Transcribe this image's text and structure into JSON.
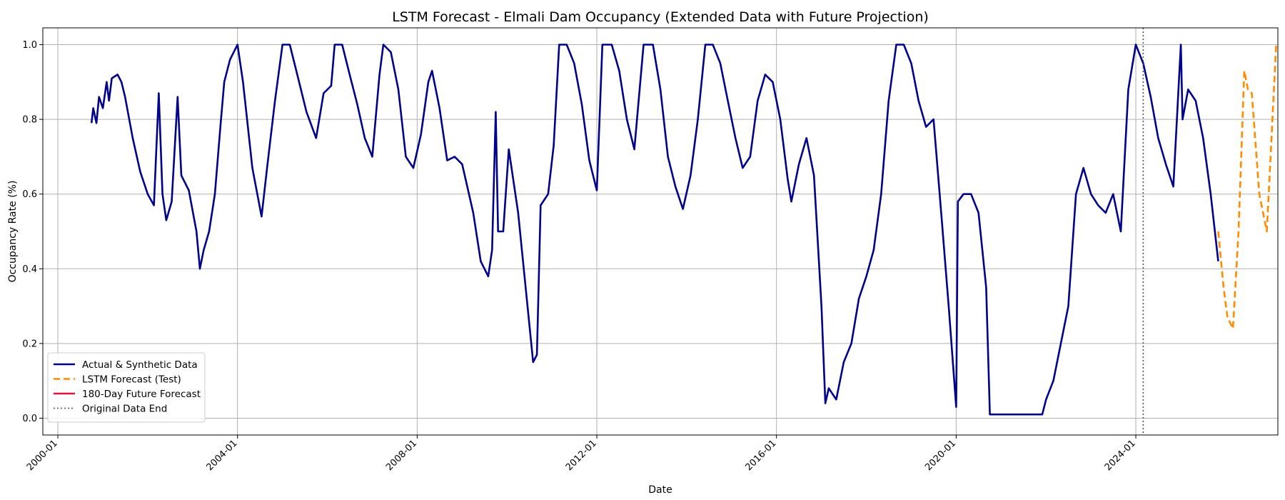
{
  "chart_data": {
    "type": "line",
    "title": "LSTM Forecast - Elmali Dam Occupancy (Extended Data with Future Projection)",
    "xlabel": "Date",
    "ylabel": "Occupancy Rate (%)",
    "x_ticks": [
      "2000-01",
      "2004-01",
      "2008-01",
      "2012-01",
      "2016-01",
      "2020-01",
      "2024-01"
    ],
    "y_ticks": [
      "0.0",
      "0.2",
      "0.4",
      "0.6",
      "0.8",
      "1.0"
    ],
    "xlim": [
      "1999-09",
      "2027-03"
    ],
    "ylim": [
      -0.045,
      1.045
    ],
    "grid": true,
    "legend_position": "lower-left",
    "original_data_end": "2024-03-01",
    "series": [
      {
        "name": "Actual & Synthetic Data",
        "color": "#00008b",
        "style": "solid",
        "points": [
          [
            "2000-10-01",
            0.79
          ],
          [
            "2000-10-15",
            0.83
          ],
          [
            "2000-11-10",
            0.79
          ],
          [
            "2000-12-01",
            0.86
          ],
          [
            "2001-01-01",
            0.83
          ],
          [
            "2001-02-01",
            0.9
          ],
          [
            "2001-02-20",
            0.85
          ],
          [
            "2001-03-15",
            0.91
          ],
          [
            "2001-05-01",
            0.92
          ],
          [
            "2001-06-01",
            0.9
          ],
          [
            "2001-07-01",
            0.86
          ],
          [
            "2001-09-01",
            0.75
          ],
          [
            "2001-11-01",
            0.66
          ],
          [
            "2002-01-01",
            0.6
          ],
          [
            "2002-02-20",
            0.57
          ],
          [
            "2002-04-01",
            0.87
          ],
          [
            "2002-05-01",
            0.6
          ],
          [
            "2002-06-01",
            0.53
          ],
          [
            "2002-07-15",
            0.58
          ],
          [
            "2002-09-01",
            0.86
          ],
          [
            "2002-10-01",
            0.65
          ],
          [
            "2002-12-01",
            0.61
          ],
          [
            "2003-02-01",
            0.5
          ],
          [
            "2003-03-01",
            0.4
          ],
          [
            "2003-04-01",
            0.45
          ],
          [
            "2003-05-15",
            0.5
          ],
          [
            "2003-07-01",
            0.6
          ],
          [
            "2003-08-15",
            0.78
          ],
          [
            "2003-09-15",
            0.9
          ],
          [
            "2003-11-01",
            0.96
          ],
          [
            "2004-01-01",
            1.0
          ],
          [
            "2004-02-15",
            0.9
          ],
          [
            "2004-05-01",
            0.67
          ],
          [
            "2004-07-15",
            0.54
          ],
          [
            "2004-09-01",
            0.68
          ],
          [
            "2004-11-01",
            0.85
          ],
          [
            "2005-01-01",
            1.0
          ],
          [
            "2005-03-01",
            1.0
          ],
          [
            "2005-05-01",
            0.92
          ],
          [
            "2005-07-15",
            0.82
          ],
          [
            "2005-10-01",
            0.75
          ],
          [
            "2005-12-01",
            0.87
          ],
          [
            "2006-02-01",
            0.89
          ],
          [
            "2006-03-01",
            1.0
          ],
          [
            "2006-05-01",
            1.0
          ],
          [
            "2006-07-01",
            0.92
          ],
          [
            "2006-09-01",
            0.84
          ],
          [
            "2006-11-01",
            0.75
          ],
          [
            "2007-01-01",
            0.7
          ],
          [
            "2007-03-01",
            0.92
          ],
          [
            "2007-04-01",
            1.0
          ],
          [
            "2007-06-01",
            0.98
          ],
          [
            "2007-08-01",
            0.88
          ],
          [
            "2007-10-01",
            0.7
          ],
          [
            "2007-12-01",
            0.67
          ],
          [
            "2008-02-01",
            0.76
          ],
          [
            "2008-04-01",
            0.9
          ],
          [
            "2008-05-01",
            0.93
          ],
          [
            "2008-07-01",
            0.83
          ],
          [
            "2008-09-01",
            0.69
          ],
          [
            "2008-11-01",
            0.7
          ],
          [
            "2009-01-01",
            0.68
          ],
          [
            "2009-04-01",
            0.55
          ],
          [
            "2009-06-01",
            0.42
          ],
          [
            "2009-08-01",
            0.38
          ],
          [
            "2009-09-01",
            0.45
          ],
          [
            "2009-10-01",
            0.82
          ],
          [
            "2009-10-20",
            0.5
          ],
          [
            "2009-12-01",
            0.5
          ],
          [
            "2010-01-15",
            0.72
          ],
          [
            "2010-04-01",
            0.55
          ],
          [
            "2010-06-01",
            0.35
          ],
          [
            "2010-08-01",
            0.15
          ],
          [
            "2010-09-01",
            0.17
          ],
          [
            "2010-10-01",
            0.57
          ],
          [
            "2010-12-01",
            0.6
          ],
          [
            "2011-01-15",
            0.73
          ],
          [
            "2011-03-01",
            1.0
          ],
          [
            "2011-05-01",
            1.0
          ],
          [
            "2011-07-01",
            0.95
          ],
          [
            "2011-09-01",
            0.84
          ],
          [
            "2011-11-01",
            0.69
          ],
          [
            "2012-01-01",
            0.61
          ],
          [
            "2012-02-15",
            1.0
          ],
          [
            "2012-05-01",
            1.0
          ],
          [
            "2012-07-01",
            0.93
          ],
          [
            "2012-09-01",
            0.8
          ],
          [
            "2012-11-01",
            0.72
          ],
          [
            "2013-01-15",
            1.0
          ],
          [
            "2013-04-01",
            1.0
          ],
          [
            "2013-06-01",
            0.88
          ],
          [
            "2013-08-01",
            0.7
          ],
          [
            "2013-10-01",
            0.62
          ],
          [
            "2013-12-01",
            0.56
          ],
          [
            "2014-02-01",
            0.65
          ],
          [
            "2014-04-01",
            0.8
          ],
          [
            "2014-06-01",
            1.0
          ],
          [
            "2014-08-01",
            1.0
          ],
          [
            "2014-10-01",
            0.95
          ],
          [
            "2014-12-01",
            0.85
          ],
          [
            "2015-02-01",
            0.75
          ],
          [
            "2015-04-01",
            0.67
          ],
          [
            "2015-06-01",
            0.7
          ],
          [
            "2015-08-01",
            0.85
          ],
          [
            "2015-10-01",
            0.92
          ],
          [
            "2015-12-01",
            0.9
          ],
          [
            "2016-02-01",
            0.8
          ],
          [
            "2016-04-01",
            0.64
          ],
          [
            "2016-05-01",
            0.58
          ],
          [
            "2016-07-01",
            0.68
          ],
          [
            "2016-09-01",
            0.75
          ],
          [
            "2016-11-01",
            0.65
          ],
          [
            "2017-01-01",
            0.3
          ],
          [
            "2017-02-01",
            0.04
          ],
          [
            "2017-03-01",
            0.08
          ],
          [
            "2017-05-01",
            0.05
          ],
          [
            "2017-07-01",
            0.15
          ],
          [
            "2017-09-01",
            0.2
          ],
          [
            "2017-11-01",
            0.32
          ],
          [
            "2018-01-01",
            0.38
          ],
          [
            "2018-03-01",
            0.45
          ],
          [
            "2018-05-01",
            0.6
          ],
          [
            "2018-07-01",
            0.85
          ],
          [
            "2018-09-01",
            1.0
          ],
          [
            "2018-11-01",
            1.0
          ],
          [
            "2019-01-01",
            0.95
          ],
          [
            "2019-03-01",
            0.85
          ],
          [
            "2019-05-01",
            0.78
          ],
          [
            "2019-07-01",
            0.8
          ],
          [
            "2019-09-01",
            0.55
          ],
          [
            "2019-11-01",
            0.3
          ],
          [
            "2020-01-01",
            0.03
          ],
          [
            "2020-01-15",
            0.58
          ],
          [
            "2020-03-01",
            0.6
          ],
          [
            "2020-05-01",
            0.6
          ],
          [
            "2020-07-01",
            0.55
          ],
          [
            "2020-09-01",
            0.35
          ],
          [
            "2020-10-01",
            0.01
          ],
          [
            "2021-01-01",
            0.01
          ],
          [
            "2021-12-01",
            0.01
          ],
          [
            "2022-01-01",
            0.05
          ],
          [
            "2022-03-01",
            0.1
          ],
          [
            "2022-05-01",
            0.2
          ],
          [
            "2022-07-01",
            0.3
          ],
          [
            "2022-09-01",
            0.6
          ],
          [
            "2022-11-01",
            0.67
          ],
          [
            "2023-01-01",
            0.6
          ],
          [
            "2023-03-01",
            0.57
          ],
          [
            "2023-05-01",
            0.55
          ],
          [
            "2023-07-01",
            0.6
          ],
          [
            "2023-09-01",
            0.5
          ],
          [
            "2023-11-01",
            0.88
          ],
          [
            "2024-01-01",
            1.0
          ],
          [
            "2024-03-01",
            0.95
          ],
          [
            "2024-05-01",
            0.86
          ],
          [
            "2024-07-01",
            0.75
          ],
          [
            "2024-09-01",
            0.68
          ],
          [
            "2024-11-01",
            0.62
          ],
          [
            "2025-01-01",
            1.0
          ],
          [
            "2025-01-15",
            0.8
          ],
          [
            "2025-03-01",
            0.88
          ],
          [
            "2025-05-01",
            0.85
          ],
          [
            "2025-07-01",
            0.75
          ],
          [
            "2025-09-01",
            0.6
          ],
          [
            "2025-11-01",
            0.42
          ]
        ]
      },
      {
        "name": "LSTM Forecast (Test)",
        "color": "#ff8c00",
        "style": "dashed",
        "points": [
          [
            "2025-11-01",
            0.5
          ],
          [
            "2025-12-15",
            0.35
          ],
          [
            "2026-01-15",
            0.27
          ],
          [
            "2026-03-01",
            0.24
          ],
          [
            "2026-04-15",
            0.5
          ],
          [
            "2026-06-01",
            0.93
          ],
          [
            "2026-07-01",
            0.88
          ],
          [
            "2026-08-01",
            0.87
          ],
          [
            "2026-10-01",
            0.6
          ],
          [
            "2026-12-01",
            0.5
          ],
          [
            "2027-01-01",
            0.7
          ],
          [
            "2027-02-15",
            1.0
          ]
        ]
      },
      {
        "name": "180-Day Future Forecast",
        "color": "#dc143c",
        "style": "solid",
        "points": []
      },
      {
        "name": "Original Data End",
        "color": "#555555",
        "style": "dotted",
        "points": []
      }
    ]
  }
}
